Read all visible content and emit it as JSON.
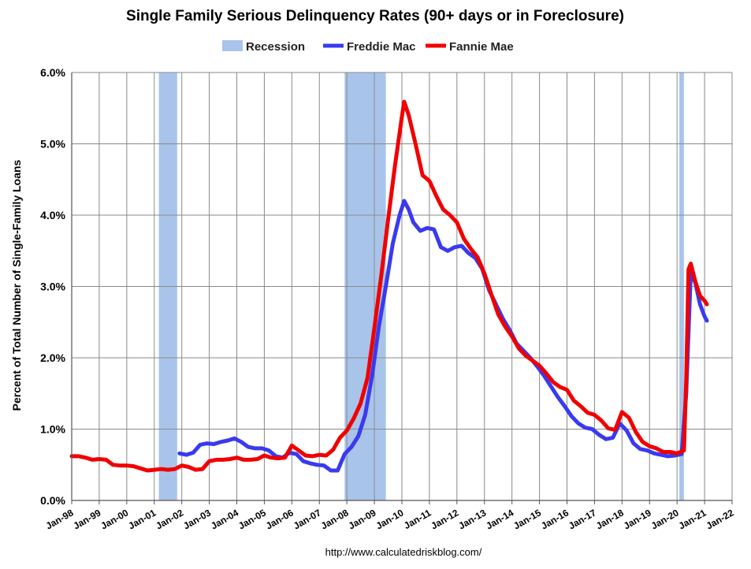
{
  "chart_data": {
    "type": "line",
    "title": "Single Family Serious Delinquency Rates (90+ days or in Foreclosure)",
    "ylabel": "Percent of Total Number of Single-Family Loans",
    "xlabel": "",
    "source": "http://www.calculatedriskblog.com/",
    "ylim": [
      0,
      6
    ],
    "xlim": [
      "1998-01",
      "2022-01"
    ],
    "y_ticks": [
      "0.0%",
      "1.0%",
      "2.0%",
      "3.0%",
      "4.0%",
      "5.0%",
      "6.0%"
    ],
    "x_ticks": [
      "Jan-98",
      "Jan-99",
      "Jan-00",
      "Jan-01",
      "Jan-02",
      "Jan-03",
      "Jan-04",
      "Jan-05",
      "Jan-06",
      "Jan-07",
      "Jan-08",
      "Jan-09",
      "Jan-10",
      "Jan-11",
      "Jan-12",
      "Jan-13",
      "Jan-14",
      "Jan-15",
      "Jan-16",
      "Jan-17",
      "Jan-18",
      "Jan-19",
      "Jan-20",
      "Jan-21",
      "Jan-22"
    ],
    "grid": "vertical and horizontal",
    "legend": "top",
    "recessions": [
      {
        "start": "2001-03",
        "end": "2001-11"
      },
      {
        "start": "2007-12",
        "end": "2009-06"
      },
      {
        "start": "2020-02",
        "end": "2020-04"
      }
    ],
    "series": [
      {
        "name": "Recession",
        "kind": "band",
        "color": "#a9c4ea"
      },
      {
        "name": "Freddie Mac",
        "color": "#3a3aef",
        "points": [
          [
            "2001-12",
            0.66
          ],
          [
            "2002-03",
            0.64
          ],
          [
            "2002-06",
            0.67
          ],
          [
            "2002-09",
            0.78
          ],
          [
            "2002-12",
            0.8
          ],
          [
            "2003-03",
            0.79
          ],
          [
            "2003-06",
            0.82
          ],
          [
            "2003-09",
            0.84
          ],
          [
            "2003-12",
            0.87
          ],
          [
            "2004-03",
            0.82
          ],
          [
            "2004-06",
            0.75
          ],
          [
            "2004-09",
            0.73
          ],
          [
            "2004-12",
            0.73
          ],
          [
            "2005-03",
            0.7
          ],
          [
            "2005-06",
            0.62
          ],
          [
            "2005-09",
            0.6
          ],
          [
            "2005-12",
            0.67
          ],
          [
            "2006-03",
            0.65
          ],
          [
            "2006-06",
            0.55
          ],
          [
            "2006-09",
            0.52
          ],
          [
            "2006-12",
            0.5
          ],
          [
            "2007-03",
            0.49
          ],
          [
            "2007-06",
            0.42
          ],
          [
            "2007-09",
            0.42
          ],
          [
            "2007-12",
            0.65
          ],
          [
            "2008-03",
            0.75
          ],
          [
            "2008-06",
            0.9
          ],
          [
            "2008-09",
            1.2
          ],
          [
            "2008-12",
            1.75
          ],
          [
            "2009-03",
            2.45
          ],
          [
            "2009-06",
            3.0
          ],
          [
            "2009-09",
            3.6
          ],
          [
            "2009-12",
            4.0
          ],
          [
            "2010-02",
            4.2
          ],
          [
            "2010-04",
            4.08
          ],
          [
            "2010-06",
            3.9
          ],
          [
            "2010-09",
            3.78
          ],
          [
            "2010-12",
            3.82
          ],
          [
            "2011-03",
            3.8
          ],
          [
            "2011-06",
            3.55
          ],
          [
            "2011-09",
            3.5
          ],
          [
            "2011-12",
            3.55
          ],
          [
            "2012-03",
            3.57
          ],
          [
            "2012-06",
            3.47
          ],
          [
            "2012-09",
            3.4
          ],
          [
            "2012-12",
            3.25
          ],
          [
            "2013-03",
            2.95
          ],
          [
            "2013-06",
            2.75
          ],
          [
            "2013-09",
            2.55
          ],
          [
            "2013-12",
            2.39
          ],
          [
            "2014-03",
            2.2
          ],
          [
            "2014-06",
            2.1
          ],
          [
            "2014-09",
            2.0
          ],
          [
            "2014-12",
            1.88
          ],
          [
            "2015-03",
            1.75
          ],
          [
            "2015-06",
            1.6
          ],
          [
            "2015-09",
            1.45
          ],
          [
            "2015-12",
            1.32
          ],
          [
            "2016-03",
            1.18
          ],
          [
            "2016-06",
            1.08
          ],
          [
            "2016-09",
            1.02
          ],
          [
            "2016-12",
            1.0
          ],
          [
            "2017-03",
            0.92
          ],
          [
            "2017-06",
            0.86
          ],
          [
            "2017-09",
            0.88
          ],
          [
            "2017-12",
            1.08
          ],
          [
            "2018-03",
            0.98
          ],
          [
            "2018-06",
            0.8
          ],
          [
            "2018-09",
            0.72
          ],
          [
            "2018-12",
            0.7
          ],
          [
            "2019-03",
            0.66
          ],
          [
            "2019-06",
            0.64
          ],
          [
            "2019-09",
            0.62
          ],
          [
            "2019-12",
            0.63
          ],
          [
            "2020-03",
            0.65
          ],
          [
            "2020-05",
            1.5
          ],
          [
            "2020-07",
            3.2
          ],
          [
            "2020-09",
            3.05
          ],
          [
            "2020-11",
            2.75
          ],
          [
            "2021-01",
            2.58
          ],
          [
            "2021-02",
            2.52
          ]
        ]
      },
      {
        "name": "Fannie Mae",
        "color": "#f00000",
        "points": [
          [
            "1998-01",
            0.62
          ],
          [
            "1998-04",
            0.62
          ],
          [
            "1998-07",
            0.6
          ],
          [
            "1998-10",
            0.57
          ],
          [
            "1999-01",
            0.58
          ],
          [
            "1999-04",
            0.57
          ],
          [
            "1999-07",
            0.5
          ],
          [
            "1999-10",
            0.49
          ],
          [
            "2000-01",
            0.49
          ],
          [
            "2000-04",
            0.48
          ],
          [
            "2000-07",
            0.45
          ],
          [
            "2000-10",
            0.42
          ],
          [
            "2001-01",
            0.43
          ],
          [
            "2001-04",
            0.44
          ],
          [
            "2001-07",
            0.43
          ],
          [
            "2001-10",
            0.44
          ],
          [
            "2002-01",
            0.49
          ],
          [
            "2002-04",
            0.47
          ],
          [
            "2002-07",
            0.43
          ],
          [
            "2002-10",
            0.44
          ],
          [
            "2003-01",
            0.55
          ],
          [
            "2003-04",
            0.57
          ],
          [
            "2003-07",
            0.57
          ],
          [
            "2003-10",
            0.58
          ],
          [
            "2004-01",
            0.6
          ],
          [
            "2004-04",
            0.57
          ],
          [
            "2004-07",
            0.57
          ],
          [
            "2004-10",
            0.58
          ],
          [
            "2005-01",
            0.63
          ],
          [
            "2005-04",
            0.6
          ],
          [
            "2005-07",
            0.59
          ],
          [
            "2005-10",
            0.6
          ],
          [
            "2006-01",
            0.77
          ],
          [
            "2006-04",
            0.7
          ],
          [
            "2006-07",
            0.63
          ],
          [
            "2006-10",
            0.62
          ],
          [
            "2007-01",
            0.64
          ],
          [
            "2007-04",
            0.63
          ],
          [
            "2007-07",
            0.71
          ],
          [
            "2007-10",
            0.88
          ],
          [
            "2008-01",
            0.98
          ],
          [
            "2008-04",
            1.15
          ],
          [
            "2008-07",
            1.36
          ],
          [
            "2008-10",
            1.72
          ],
          [
            "2009-01",
            2.42
          ],
          [
            "2009-04",
            3.15
          ],
          [
            "2009-07",
            3.94
          ],
          [
            "2009-10",
            4.7
          ],
          [
            "2010-01",
            5.38
          ],
          [
            "2010-02",
            5.59
          ],
          [
            "2010-04",
            5.4
          ],
          [
            "2010-07",
            4.99
          ],
          [
            "2010-10",
            4.56
          ],
          [
            "2011-01",
            4.48
          ],
          [
            "2011-04",
            4.27
          ],
          [
            "2011-07",
            4.08
          ],
          [
            "2011-10",
            4.0
          ],
          [
            "2012-01",
            3.9
          ],
          [
            "2012-04",
            3.67
          ],
          [
            "2012-07",
            3.53
          ],
          [
            "2012-10",
            3.41
          ],
          [
            "2013-01",
            3.18
          ],
          [
            "2013-04",
            2.89
          ],
          [
            "2013-07",
            2.61
          ],
          [
            "2013-10",
            2.44
          ],
          [
            "2014-01",
            2.3
          ],
          [
            "2014-04",
            2.13
          ],
          [
            "2014-07",
            2.03
          ],
          [
            "2014-10",
            1.96
          ],
          [
            "2015-01",
            1.89
          ],
          [
            "2015-04",
            1.78
          ],
          [
            "2015-07",
            1.66
          ],
          [
            "2015-10",
            1.59
          ],
          [
            "2016-01",
            1.55
          ],
          [
            "2016-04",
            1.4
          ],
          [
            "2016-07",
            1.32
          ],
          [
            "2016-10",
            1.23
          ],
          [
            "2017-01",
            1.2
          ],
          [
            "2017-04",
            1.12
          ],
          [
            "2017-07",
            1.01
          ],
          [
            "2017-10",
            0.99
          ],
          [
            "2018-01",
            1.24
          ],
          [
            "2018-04",
            1.16
          ],
          [
            "2018-07",
            0.96
          ],
          [
            "2018-10",
            0.82
          ],
          [
            "2019-01",
            0.76
          ],
          [
            "2019-04",
            0.73
          ],
          [
            "2019-07",
            0.68
          ],
          [
            "2019-10",
            0.68
          ],
          [
            "2020-01",
            0.66
          ],
          [
            "2020-04",
            0.7
          ],
          [
            "2020-05",
            1.7
          ],
          [
            "2020-06",
            3.24
          ],
          [
            "2020-07",
            3.32
          ],
          [
            "2020-09",
            3.07
          ],
          [
            "2020-11",
            2.87
          ],
          [
            "2021-01",
            2.8
          ],
          [
            "2021-02",
            2.75
          ]
        ]
      }
    ]
  }
}
